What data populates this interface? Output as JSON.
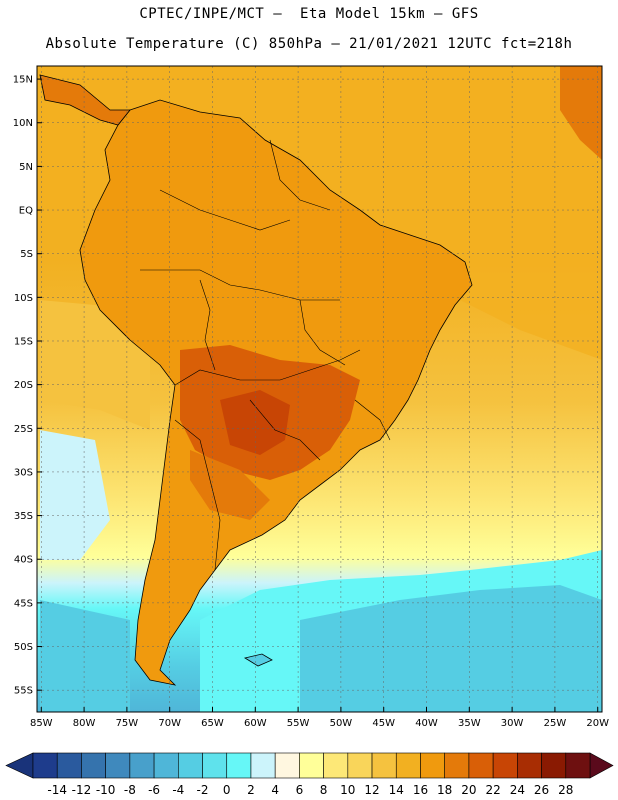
{
  "header": {
    "line1": "CPTEC/INPE/MCT –  Eta Model 15km – GFS",
    "line2": "Absolute Temperature (C) 850hPa – 21/01/2021 12UTC fct=218h"
  },
  "map": {
    "lat_labels": [
      "15N",
      "10N",
      "5N",
      "EQ",
      "5S",
      "10S",
      "15S",
      "20S",
      "25S",
      "30S",
      "35S",
      "40S",
      "45S",
      "50S",
      "55S"
    ],
    "lon_labels": [
      "85W",
      "80W",
      "75W",
      "70W",
      "65W",
      "60W",
      "55W",
      "50W",
      "45W",
      "40W",
      "35W",
      "30W",
      "25W",
      "20W"
    ],
    "lat_values": [
      15,
      10,
      5,
      0,
      -5,
      -10,
      -15,
      -20,
      -25,
      -30,
      -35,
      -40,
      -45,
      -50,
      -55
    ],
    "lon_values": [
      -85,
      -80,
      -75,
      -70,
      -65,
      -60,
      -55,
      -50,
      -45,
      -40,
      -35,
      -30,
      -25,
      -20
    ],
    "extent": {
      "lon_min": -85.5,
      "lon_max": -19.5,
      "lat_min": -57.5,
      "lat_max": 16.5
    }
  },
  "colorbar": {
    "labels": [
      "-14",
      "-12",
      "-10",
      "-8",
      "-6",
      "-4",
      "-2",
      "0",
      "2",
      "4",
      "6",
      "8",
      "10",
      "12",
      "14",
      "16",
      "18",
      "20",
      "22",
      "24",
      "26",
      "28"
    ],
    "colors": [
      "#1e3c8c",
      "#2a5a9e",
      "#3573ad",
      "#3f89bd",
      "#48a0cb",
      "#4fb6d8",
      "#55cde3",
      "#5fe2ec",
      "#66f7f7",
      "#ccf4fb",
      "#fff7e0",
      "#ffff99",
      "#fde877",
      "#f9d55a",
      "#f5c23f",
      "#f2b021",
      "#f09a0e",
      "#e47a0a",
      "#d95f07",
      "#c84505",
      "#a82d03",
      "#8a1a02",
      "#6e1010"
    ],
    "arrow_left": "#19337a",
    "arrow_right": "#5a0a1c"
  },
  "colors": {
    "ocean_north": "#f2b021",
    "ocean_mid": "#f9d55a",
    "ocean_south": "#66f7f7",
    "land_base": "#f09a0e",
    "land_hot": "#d95f07",
    "land_hottest": "#c84505"
  }
}
